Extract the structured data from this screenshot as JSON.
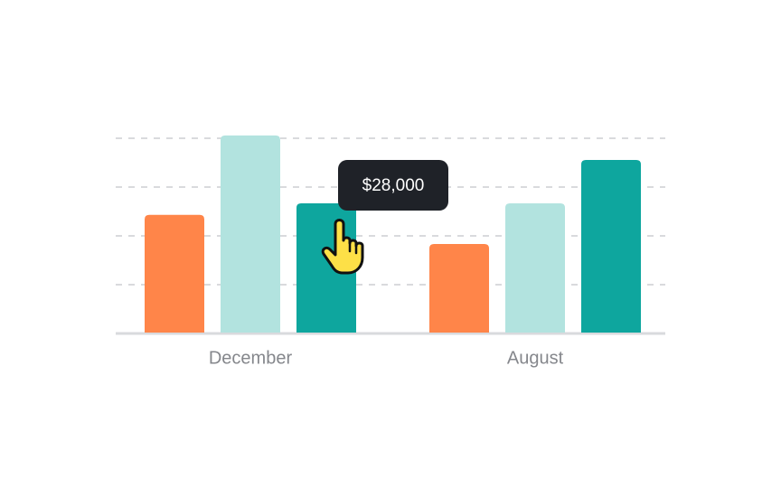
{
  "chart_data": {
    "type": "bar",
    "categories": [
      "December",
      "August"
    ],
    "series": [
      {
        "color": "#ff8549",
        "values": [
          25500,
          19200
        ]
      },
      {
        "color": "#b2e3df",
        "values": [
          42700,
          28000
        ]
      },
      {
        "color": "#0ea69e",
        "values": [
          28000,
          37400
        ],
        "value_labels": [
          "$28,000",
          null
        ]
      }
    ],
    "ylim": [
      0,
      44000
    ]
  }
}
